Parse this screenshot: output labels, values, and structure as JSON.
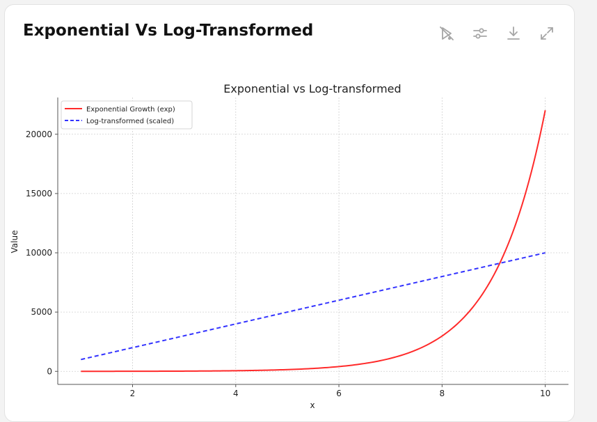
{
  "card": {
    "title": "Exponential Vs Log-Transformed",
    "toolbar": [
      {
        "name": "interactive-toggle-button",
        "icon": "sparkle-slash-icon"
      },
      {
        "name": "customize-button",
        "icon": "sliders-icon"
      },
      {
        "name": "download-button",
        "icon": "download-icon"
      },
      {
        "name": "expand-button",
        "icon": "expand-icon"
      }
    ],
    "icon_color": "#a6a6a6"
  },
  "chart_data": {
    "type": "line",
    "title": "Exponential vs Log-transformed",
    "xlabel": "x",
    "ylabel": "Value",
    "xlim": [
      0.55,
      10.45
    ],
    "ylim": [
      -1100,
      23100
    ],
    "xticks": [
      2,
      4,
      6,
      8,
      10
    ],
    "yticks": [
      0,
      5000,
      10000,
      15000,
      20000
    ],
    "grid": true,
    "legend_position": "top-left",
    "series": [
      {
        "name": "Exponential Growth (exp)",
        "function": "exp(x)",
        "x_range": [
          1,
          10
        ],
        "color": "#ff2a2a",
        "style": "solid"
      },
      {
        "name": "Log-transformed (scaled)",
        "function": "1000*x",
        "x_range": [
          1,
          10
        ],
        "color": "#3333ff",
        "style": "dashed"
      }
    ]
  }
}
